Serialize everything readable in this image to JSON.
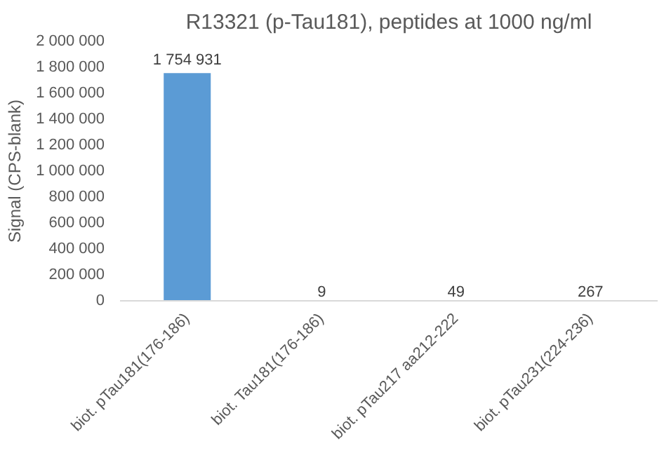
{
  "chart_data": {
    "type": "bar",
    "title": "R13321 (p-Tau181), peptides at 1000 ng/ml",
    "ylabel": "Signal (CPS-blank)",
    "categories": [
      "biot. pTau181(176-186)",
      "biot. Tau181(176-186)",
      "biot. pTau217 aa212-222",
      "biot. pTau231(224-236)"
    ],
    "values": [
      1754931,
      9,
      49,
      267
    ],
    "value_labels": [
      "1 754 931",
      "9",
      "49",
      "267"
    ],
    "color": "#5b9bd5",
    "ylim": [
      0,
      2000000
    ],
    "yticks": [
      {
        "value": 0,
        "label": "0"
      },
      {
        "value": 200000,
        "label": "200 000"
      },
      {
        "value": 400000,
        "label": "400 000"
      },
      {
        "value": 600000,
        "label": "600 000"
      },
      {
        "value": 800000,
        "label": "800 000"
      },
      {
        "value": 1000000,
        "label": "1 000 000"
      },
      {
        "value": 1200000,
        "label": "1 200 000"
      },
      {
        "value": 1400000,
        "label": "1 400 000"
      },
      {
        "value": 1600000,
        "label": "1 600 000"
      },
      {
        "value": 1800000,
        "label": "1 800 000"
      },
      {
        "value": 2000000,
        "label": "2 000 000"
      }
    ],
    "grid": false
  }
}
